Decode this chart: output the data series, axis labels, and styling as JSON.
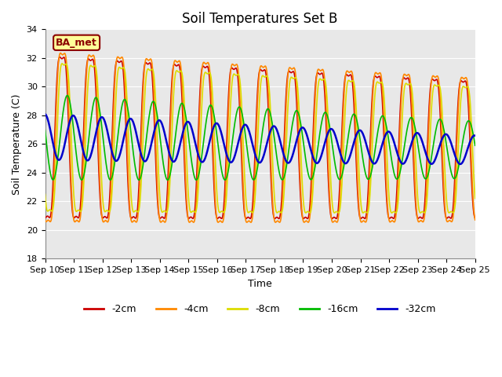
{
  "title": "Soil Temperatures Set B",
  "xlabel": "Time",
  "ylabel": "Soil Temperature (C)",
  "ylim": [
    18,
    34
  ],
  "series": {
    "-2cm": {
      "color": "#cc0000",
      "lw": 1.2
    },
    "-4cm": {
      "color": "#ff8800",
      "lw": 1.2
    },
    "-8cm": {
      "color": "#dddd00",
      "lw": 1.2
    },
    "-16cm": {
      "color": "#00bb00",
      "lw": 1.2
    },
    "-32cm": {
      "color": "#0000cc",
      "lw": 1.8
    }
  },
  "legend_order": [
    "-2cm",
    "-4cm",
    "-8cm",
    "-16cm",
    "-32cm"
  ],
  "annotation_text": "BA_met",
  "annotation_color": "#8B0000",
  "annotation_bg": "#ffff99",
  "bg_color": "#e8e8e8",
  "grid_color": "#ffffff",
  "title_fontsize": 12,
  "axis_fontsize": 9,
  "tick_fontsize": 8,
  "figwidth": 6.4,
  "figheight": 4.8,
  "dpi": 100
}
